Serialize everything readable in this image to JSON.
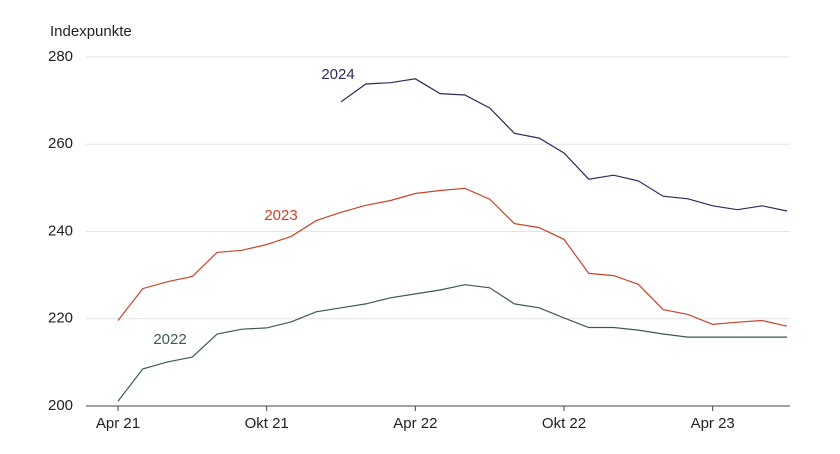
{
  "chart_data": {
    "type": "line",
    "y_axis_label": "Indexpunkte",
    "categories": [
      "Apr 21",
      null,
      null,
      null,
      null,
      null,
      "Okt 21",
      null,
      null,
      null,
      null,
      null,
      "Apr 22",
      null,
      null,
      null,
      null,
      null,
      "Okt 22",
      null,
      null,
      null,
      null,
      null,
      "Apr 23",
      null,
      null,
      null
    ],
    "series": [
      {
        "name": "2022",
        "color": "#3b5a55",
        "values": [
          201.1,
          208.5,
          210.1,
          211.2,
          216.5,
          217.6,
          217.9,
          219.3,
          221.6,
          222.5,
          223.4,
          224.8,
          225.7,
          226.6,
          227.8,
          227.1,
          223.4,
          222.5,
          220.2,
          218.0,
          218.0,
          217.4,
          216.5,
          215.8,
          215.8,
          215.8,
          215.8,
          215.8
        ]
      },
      {
        "name": "2023",
        "color": "#c8442a",
        "values": [
          219.6,
          226.9,
          228.5,
          229.7,
          235.2,
          235.7,
          237.0,
          238.9,
          242.5,
          244.4,
          246.0,
          247.1,
          248.7,
          249.4,
          249.9,
          247.4,
          241.8,
          240.9,
          238.2,
          230.4,
          229.9,
          227.9,
          222.1,
          221.0,
          218.7,
          219.2,
          219.6,
          218.3
        ]
      },
      {
        "name": "2024",
        "color": "#2e2a5c",
        "values": [
          null,
          null,
          null,
          null,
          null,
          null,
          null,
          null,
          null,
          269.7,
          273.8,
          274.1,
          275.0,
          271.6,
          271.3,
          268.3,
          262.5,
          261.4,
          258.0,
          252.0,
          252.9,
          251.6,
          248.1,
          247.5,
          245.9,
          245.0,
          245.9,
          244.7
        ]
      }
    ],
    "ylim": [
      200,
      280
    ],
    "yticks": [
      200,
      220,
      240,
      260,
      280
    ],
    "grid": true
  }
}
